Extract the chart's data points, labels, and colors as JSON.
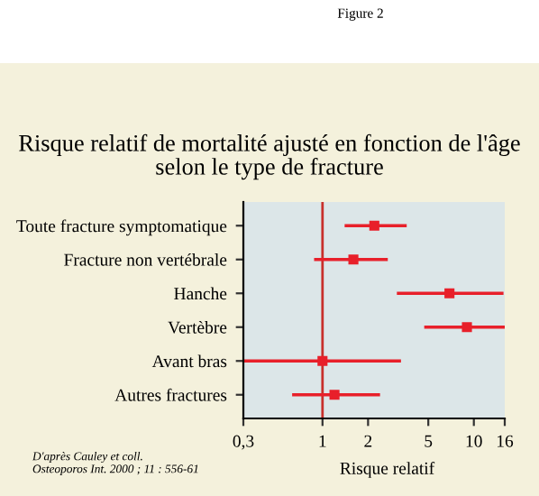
{
  "chart_data": {
    "type": "scatter",
    "orientation": "horizontal",
    "title": "Risque relatif de mortalité ajusté en fonction de l'âge\nselon le type de fracture",
    "xlabel": "Risque relatif",
    "annotations": [
      "Figure 2",
      "D'après Cauley et coll.\nOsteoporos Int. 2000 ; 11 : 556-61"
    ],
    "categories": [
      "Toute fracture symptomatique",
      "Fracture non vertébrale",
      "Hanche",
      "Vertèbre",
      "Avant bras",
      "Autres fractures"
    ],
    "values": [
      2.2,
      1.6,
      6.9,
      9.0,
      1.0,
      1.2
    ],
    "errors": [
      [
        1.4,
        3.6
      ],
      [
        0.88,
        2.7
      ],
      [
        3.1,
        15.7
      ],
      [
        4.7,
        16
      ],
      [
        0.3,
        3.3
      ],
      [
        0.63,
        2.4
      ]
    ],
    "color": "#e8202a",
    "marker": "square",
    "log": "x",
    "xlim": [
      0.3,
      16
    ],
    "xticks": [
      {
        "value": 0.3,
        "label": "0,3"
      },
      1,
      2,
      5,
      10,
      16
    ],
    "ref_lines": [
      {
        "axis": "x",
        "value": 1,
        "color": "#c8302c"
      }
    ],
    "grid": false
  }
}
